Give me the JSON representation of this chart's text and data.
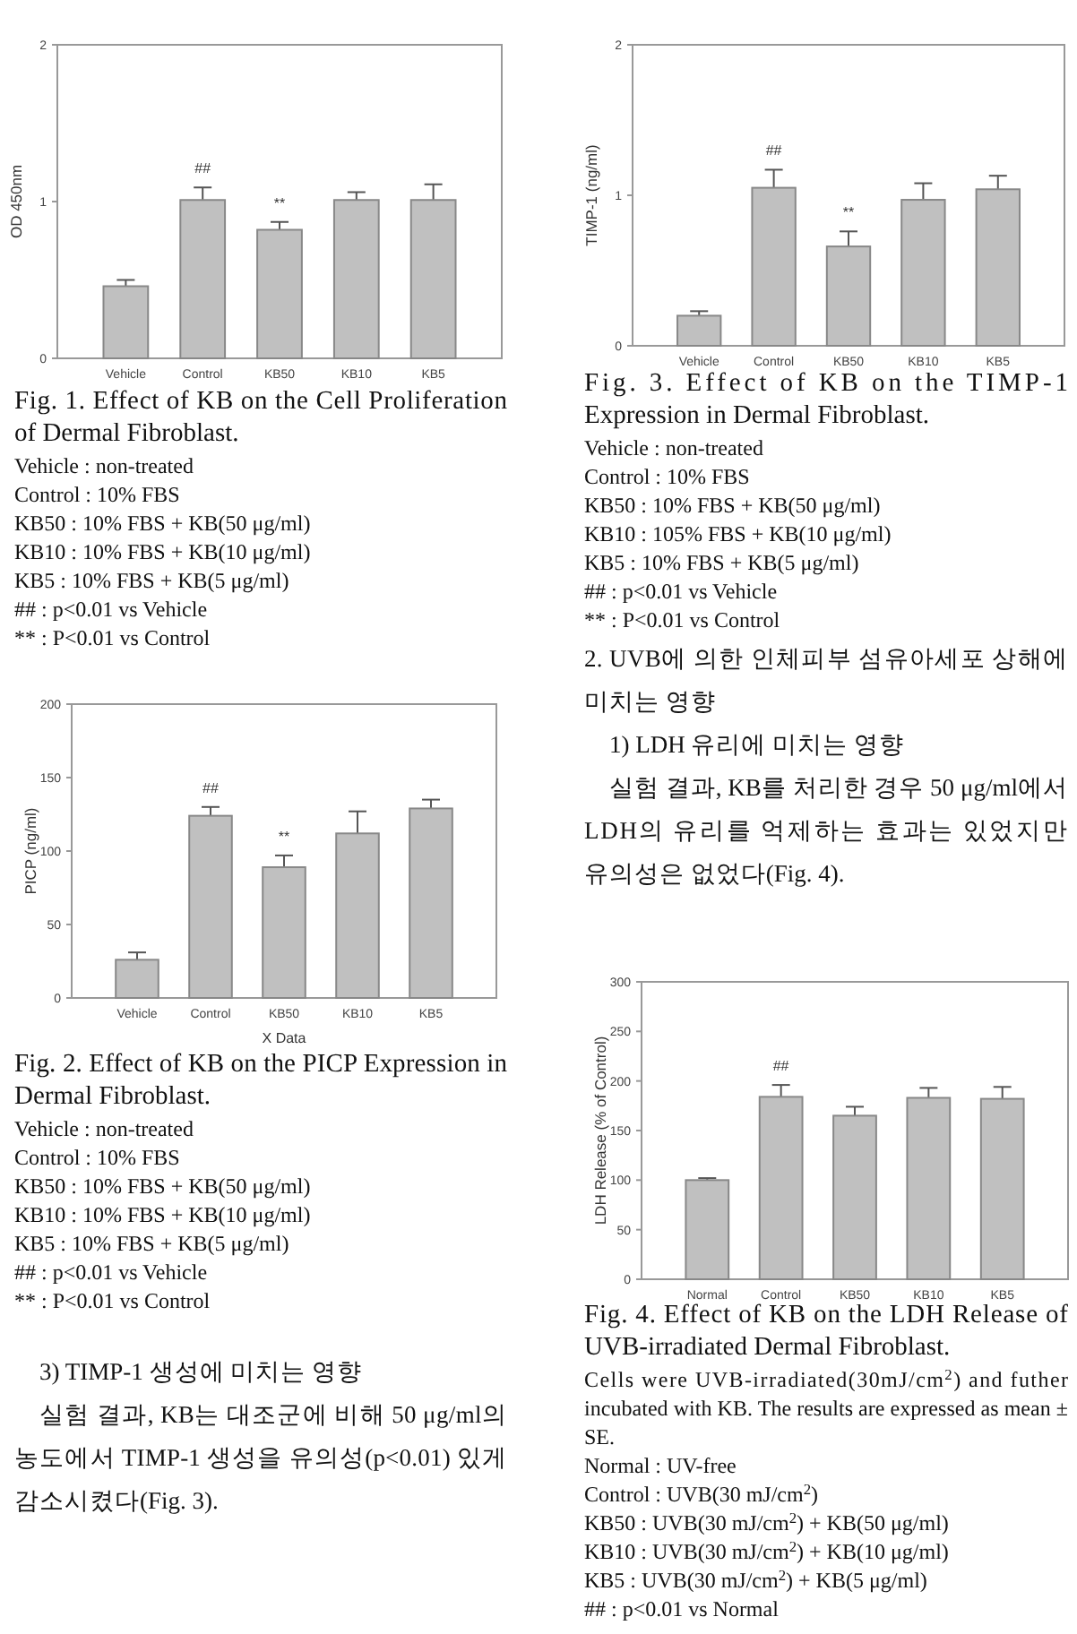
{
  "chart_data": [
    {
      "type": "bar",
      "title": "Fig. 1. Effect of KB on the Cell Proliferation of Dermal Fibroblast.",
      "ylabel": "OD 450nm",
      "categories": [
        "Vehicle",
        "Control",
        "KB50",
        "KB10",
        "KB5"
      ],
      "values": [
        0.46,
        1.01,
        0.82,
        1.01,
        1.01
      ],
      "errors": [
        0.04,
        0.08,
        0.05,
        0.05,
        0.1
      ],
      "color": "#c0c0c0",
      "ylim": [
        0,
        2
      ],
      "yticks": [
        0,
        1,
        2
      ],
      "annotations": [
        "Vehicle : non-treated",
        "Control : 10% FBS",
        "KB50 : 10% FBS + KB(50 μg/ml)",
        "KB10 : 10% FBS + KB(10 μg/ml)",
        "KB5 : 10% FBS + KB(5 μg/ml)",
        "## : p<0.01 vs Vehicle",
        "** : P<0.01 vs Control",
        {
          "text": "##",
          "x": "Control",
          "y": 1.01
        },
        {
          "text": "**",
          "x": "KB50",
          "y": 0.82
        }
      ]
    },
    {
      "type": "bar",
      "title": "Fig. 2. Effect of KB on the PICP Expression in Dermal Fibroblast.",
      "ylabel": "PICP (ng/ml)",
      "xlabel": "X Data",
      "categories": [
        "Vehicle",
        "Control",
        "KB50",
        "KB10",
        "KB5"
      ],
      "values": [
        26,
        124,
        89,
        112,
        129
      ],
      "errors": [
        5,
        6,
        8,
        15,
        6
      ],
      "color": "#c0c0c0",
      "ylim": [
        0,
        200
      ],
      "yticks": [
        0,
        50,
        100,
        150,
        200
      ],
      "annotations": [
        "Vehicle : non-treated",
        "Control : 10% FBS",
        "KB50 : 10% FBS + KB(50 μg/ml)",
        "KB10 : 10% FBS + KB(10 μg/ml)",
        "KB5 : 10% FBS + KB(5 μg/ml)",
        "## : p<0.01 vs Vehicle",
        "** : P<0.01 vs Control",
        "3) TIMP-1 생성에 미치는 영향",
        "실험 결과, KB는 대조군에 비해 50 μg/ml의 농도에서 TIMP-1 생성을 유의성(p<0.01) 있게 감소시켰다(Fig. 3).",
        {
          "text": "##",
          "x": "Control",
          "y": 124
        },
        {
          "text": "**",
          "x": "KB50",
          "y": 89
        }
      ]
    },
    {
      "type": "bar",
      "title": "Fig. 3. Effect of KB on the TIMP-1 Expression in Dermal Fibroblast.",
      "ylabel": "TIMP-1 (ng/ml)",
      "categories": [
        "Vehicle",
        "Control",
        "KB50",
        "KB10",
        "KB5"
      ],
      "values": [
        0.2,
        1.05,
        0.66,
        0.97,
        1.04
      ],
      "errors": [
        0.03,
        0.12,
        0.1,
        0.11,
        0.09
      ],
      "color": "#c0c0c0",
      "ylim": [
        0,
        2
      ],
      "yticks": [
        0,
        1,
        2
      ],
      "annotations": [
        "Vehicle : non-treated",
        "Control : 10% FBS",
        "KB50 : 10% FBS + KB(50 μg/ml)",
        "KB10 : 105% FBS + KB(10 μg/ml)",
        "KB5 : 10% FBS + KB(5 μg/ml)",
        "## : p<0.01 vs Vehicle",
        "** : P<0.01 vs Control",
        "2. UVB에 의한 인체피부 섬유아세포 상해에 미치는 영향",
        "1) LDH 유리에 미치는 영향",
        "실험 결과, KB를 처리한 경우 50 μg/ml에서 LDH의 유리를 억제하는 효과는 있었지만 유의성은 없었다(Fig. 4).",
        {
          "text": "##",
          "x": "Control",
          "y": 1.05
        },
        {
          "text": "**",
          "x": "KB50",
          "y": 0.66
        }
      ]
    },
    {
      "type": "bar",
      "title": "Fig. 4. Effect of KB on the LDH Release of UVB-irradiated Dermal Fibroblast.",
      "ylabel": "LDH Release (% of Control)",
      "categories": [
        "Normal",
        "Control",
        "KB50",
        "KB10",
        "KB5"
      ],
      "values": [
        100,
        184,
        165,
        183,
        182
      ],
      "errors": [
        2,
        12,
        9,
        10,
        12
      ],
      "color": "#c0c0c0",
      "ylim": [
        0,
        300
      ],
      "yticks": [
        0,
        50,
        100,
        150,
        200,
        250,
        300
      ],
      "annotations": [
        "Cells were UVB-irradiated(30mJ/cm$^{2}$) and futher incubated with KB. The results are expressed as mean ± SE.",
        "Normal : UV-free",
        "Control : UVB(30 mJ/cm$^{2}$)",
        "KB50 : UVB(30 mJ/cm$^{2}$) + KB(50 μg/ml)",
        "KB10 : UVB(30 mJ/cm$^{2}$) + KB(10 μg/ml)",
        "KB5 : UVB(30 mJ/cm$^{2}$) + KB(5 μg/ml)",
        "## : p<0.01 vs Normal",
        {
          "text": "##",
          "x": "Control",
          "y": 184
        }
      ]
    }
  ]
}
